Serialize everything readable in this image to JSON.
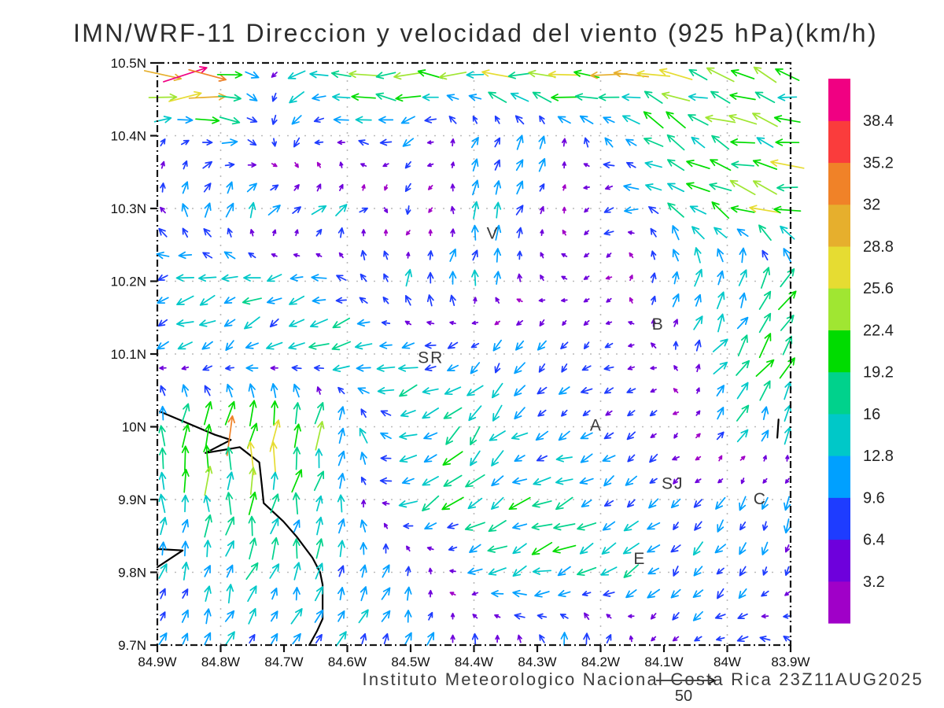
{
  "title": "IMN/WRF-11 Direccion y velocidad del viento (925 hPa)(km/h)",
  "caption": {
    "text": "Instituto Meteorologico Nacional Costa Rica  23Z11AUG2025",
    "reference_vector_label": "50"
  },
  "axes": {
    "x": {
      "tick_labels": [
        "84.9W",
        "84.8W",
        "84.7W",
        "84.6W",
        "84.5W",
        "84.4W",
        "84.3W",
        "84.2W",
        "84.1W",
        "84W",
        "83.9W"
      ],
      "tick_lons": [
        -84.9,
        -84.8,
        -84.7,
        -84.6,
        -84.5,
        -84.4,
        -84.3,
        -84.2,
        -84.1,
        -84.0,
        -83.9
      ]
    },
    "y": {
      "tick_labels": [
        "10.5N",
        "10.4N",
        "10.3N",
        "10.2N",
        "10.1N",
        "10N",
        "9.9N",
        "9.8N",
        "9.7N"
      ],
      "tick_lats": [
        10.5,
        10.4,
        10.3,
        10.2,
        10.1,
        10.0,
        9.9,
        9.8,
        9.7
      ]
    },
    "gridlines": {
      "lons": [
        -84.8,
        -84.6,
        -84.4,
        -84.2,
        -84.0
      ],
      "lats": [
        10.4,
        10.3,
        10.2,
        10.1,
        10.0,
        9.9,
        9.8
      ]
    }
  },
  "colorbar": {
    "labels_ascending": [
      "3.2",
      "6.4",
      "9.6",
      "12.8",
      "16",
      "19.2",
      "22.4",
      "25.6",
      "28.8",
      "32",
      "35.2",
      "38.4"
    ]
  },
  "stations": [
    {
      "label": "V",
      "lon": -84.37,
      "lat": 10.266
    },
    {
      "label": "SR",
      "lon": -84.468,
      "lat": 10.095
    },
    {
      "label": "B",
      "lon": -84.109,
      "lat": 10.141
    },
    {
      "label": "A",
      "lon": -84.207,
      "lat": 10.002
    },
    {
      "label": "SJ",
      "lon": -84.086,
      "lat": 9.922
    },
    {
      "label": "C",
      "lon": -83.948,
      "lat": 9.901
    },
    {
      "label": "E",
      "lon": -84.138,
      "lat": 9.819
    }
  ],
  "map": {
    "coastlines": [
      [
        [
          -84.896,
          10.021
        ],
        [
          -84.809,
          9.989
        ],
        [
          -84.784,
          9.982
        ],
        [
          -84.824,
          9.964
        ],
        [
          -84.77,
          9.972
        ],
        [
          -84.739,
          9.951
        ],
        [
          -84.735,
          9.92
        ],
        [
          -84.732,
          9.895
        ],
        [
          -84.701,
          9.87
        ],
        [
          -84.68,
          9.849
        ],
        [
          -84.655,
          9.82
        ],
        [
          -84.643,
          9.8
        ],
        [
          -84.639,
          9.783
        ],
        [
          -84.639,
          9.736
        ],
        [
          -84.648,
          9.719
        ],
        [
          -84.66,
          9.7
        ]
      ],
      [
        [
          -84.9,
          9.832
        ],
        [
          -84.86,
          9.83
        ],
        [
          -84.9,
          9.807
        ]
      ],
      [
        [
          -83.919,
          10.01
        ],
        [
          -83.921,
          9.985
        ]
      ]
    ]
  },
  "chart_data": {
    "type": "quiver",
    "title": "IMN/WRF-11 Direccion y velocidad del viento (925 hPa)(km/h)",
    "units": "km/h",
    "pressure_level": "925 hPa",
    "model": "IMN/WRF-11",
    "valid_time": "23Z11AUG2025",
    "reference_vector": 50,
    "lon_range": [
      -84.9,
      -83.9
    ],
    "lat_range": [
      9.7,
      10.5
    ],
    "levels": [
      3.2,
      6.4,
      9.6,
      12.8,
      16,
      19.2,
      22.4,
      25.6,
      28.8,
      32,
      35.2,
      38.4
    ],
    "colors": [
      "#A000C8",
      "#6E00DC",
      "#1E3CFF",
      "#00A0FF",
      "#00C8C8",
      "#00D28C",
      "#00DC00",
      "#A0E632",
      "#E6DC32",
      "#E6AF2D",
      "#F08228",
      "#FA3C3C",
      "#F00082"
    ],
    "grid_lons": [
      -84.9,
      -84.8,
      -84.7,
      -84.6,
      -84.5,
      -84.4,
      -84.3,
      -84.2,
      -84.1,
      -84.0,
      -83.9
    ],
    "grid_lats": [
      10.5,
      10.4,
      10.3,
      10.2,
      10.1,
      10.0,
      9.9,
      9.8,
      9.7
    ],
    "u": [
      [
        34,
        36,
        -14,
        -20,
        -25,
        -22,
        -33,
        -30,
        -24,
        -18,
        -20
      ],
      [
        3,
        14,
        -4,
        -10,
        -8,
        3,
        3,
        -6,
        -14,
        -19,
        -22
      ],
      [
        -4,
        2,
        8,
        9,
        -4,
        2,
        6,
        -7,
        -12,
        -17,
        -23
      ],
      [
        -12,
        -14,
        -10,
        -11,
        2,
        3,
        -4,
        -3,
        5,
        6,
        8
      ],
      [
        -8,
        -10,
        -12,
        -14,
        -12,
        -8,
        -4,
        -6,
        -5,
        10,
        12
      ],
      [
        2,
        6,
        8,
        2,
        -15,
        -10,
        -9,
        -8,
        -4,
        8,
        4
      ],
      [
        0,
        0,
        2,
        2,
        -13,
        -16,
        -14,
        -10,
        -8,
        -6,
        -4
      ],
      [
        4,
        5,
        4,
        2,
        3,
        -8,
        -17,
        -12,
        -8,
        -6,
        -3
      ],
      [
        4,
        5,
        4,
        6,
        3,
        2,
        -2,
        4,
        -5,
        -8,
        -7
      ]
    ],
    "v": [
      [
        2,
        0,
        -6,
        2,
        2,
        2,
        2,
        2,
        4,
        7,
        5
      ],
      [
        8,
        -2,
        -9,
        2,
        -4,
        9,
        10,
        6,
        9,
        8,
        4
      ],
      [
        7,
        14,
        9,
        7,
        -9,
        12,
        8,
        -5,
        7,
        9,
        6
      ],
      [
        -3,
        -2,
        -5,
        5,
        13,
        11,
        4,
        -3,
        11,
        13,
        15
      ],
      [
        -6,
        -8,
        -6,
        -8,
        -4,
        -8,
        -10,
        -4,
        3,
        13,
        17
      ],
      [
        19,
        29,
        25,
        17,
        -5,
        -12,
        -4,
        -4,
        -5,
        10,
        15
      ],
      [
        16,
        18,
        16,
        12,
        -7,
        -9,
        -6,
        -6,
        -4,
        -8,
        -10
      ],
      [
        10,
        12,
        14,
        12,
        8,
        -5,
        -6,
        -8,
        -9,
        -8,
        -6
      ],
      [
        8,
        10,
        10,
        10,
        10,
        8,
        10,
        12,
        -4,
        -3,
        5
      ]
    ]
  }
}
